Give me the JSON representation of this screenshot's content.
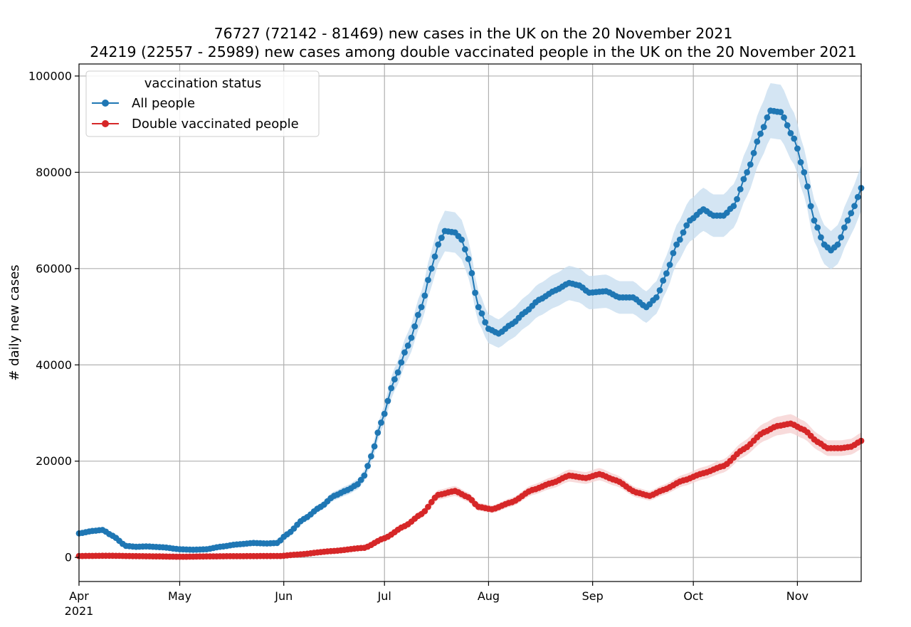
{
  "chart_data": {
    "type": "line",
    "title": "76727 (72142 - 81469) new cases in the UK on the 20 November 2021",
    "subtitle": "24219 (22557 - 25989) new cases among double vaccinated people in the UK on the 20 November 2021",
    "xlabel": "",
    "ylabel": "# daily new cases",
    "x_range": [
      "2021-04-01",
      "2021-11-20"
    ],
    "ylim": [
      -5000,
      102500
    ],
    "grid": true,
    "x_ticks": [
      {
        "date": "2021-04-01",
        "label": "Apr",
        "sublabel": "2021"
      },
      {
        "date": "2021-05-01",
        "label": "May"
      },
      {
        "date": "2021-06-01",
        "label": "Jun"
      },
      {
        "date": "2021-07-01",
        "label": "Jul"
      },
      {
        "date": "2021-08-01",
        "label": "Aug"
      },
      {
        "date": "2021-09-01",
        "label": "Sep"
      },
      {
        "date": "2021-10-01",
        "label": "Oct"
      },
      {
        "date": "2021-11-01",
        "label": "Nov"
      }
    ],
    "y_ticks": [
      0,
      20000,
      40000,
      60000,
      80000,
      100000
    ],
    "legend": {
      "title": "vaccination status",
      "placement": "top-left"
    },
    "series": [
      {
        "name": "All people",
        "color": "#1f77b4",
        "band_color": "#c6dcef",
        "band_rel": 0.06,
        "keypoints": [
          [
            "2021-04-01",
            5000
          ],
          [
            "2021-04-05",
            5500
          ],
          [
            "2021-04-08",
            5700
          ],
          [
            "2021-04-11",
            4500
          ],
          [
            "2021-04-15",
            2400
          ],
          [
            "2021-04-18",
            2200
          ],
          [
            "2021-04-21",
            2300
          ],
          [
            "2021-04-26",
            2100
          ],
          [
            "2021-05-01",
            1700
          ],
          [
            "2021-05-05",
            1600
          ],
          [
            "2021-05-09",
            1700
          ],
          [
            "2021-05-13",
            2200
          ],
          [
            "2021-05-18",
            2700
          ],
          [
            "2021-05-23",
            3000
          ],
          [
            "2021-05-27",
            2900
          ],
          [
            "2021-05-30",
            3000
          ],
          [
            "2021-06-02",
            4800
          ],
          [
            "2021-06-07",
            8000
          ],
          [
            "2021-06-12",
            10500
          ],
          [
            "2021-06-16",
            12800
          ],
          [
            "2021-06-20",
            14000
          ],
          [
            "2021-06-23",
            15200
          ],
          [
            "2021-06-25",
            17000
          ],
          [
            "2021-06-27",
            21000
          ],
          [
            "2021-06-30",
            28000
          ],
          [
            "2021-07-04",
            37000
          ],
          [
            "2021-07-08",
            44000
          ],
          [
            "2021-07-12",
            52000
          ],
          [
            "2021-07-15",
            60000
          ],
          [
            "2021-07-17",
            65000
          ],
          [
            "2021-07-19",
            67800
          ],
          [
            "2021-07-22",
            67500
          ],
          [
            "2021-07-24",
            66000
          ],
          [
            "2021-07-26",
            62000
          ],
          [
            "2021-07-29",
            52000
          ],
          [
            "2021-08-01",
            47500
          ],
          [
            "2021-08-04",
            46500
          ],
          [
            "2021-08-08",
            48500
          ],
          [
            "2021-08-12",
            51000
          ],
          [
            "2021-08-16",
            53500
          ],
          [
            "2021-08-21",
            55500
          ],
          [
            "2021-08-25",
            57000
          ],
          [
            "2021-08-28",
            56500
          ],
          [
            "2021-08-31",
            55000
          ],
          [
            "2021-09-05",
            55300
          ],
          [
            "2021-09-09",
            54000
          ],
          [
            "2021-09-13",
            54000
          ],
          [
            "2021-09-17",
            52000
          ],
          [
            "2021-09-20",
            54000
          ],
          [
            "2021-09-23",
            59000
          ],
          [
            "2021-09-26",
            65000
          ],
          [
            "2021-09-30",
            70000
          ],
          [
            "2021-10-04",
            72300
          ],
          [
            "2021-10-07",
            71000
          ],
          [
            "2021-10-10",
            71000
          ],
          [
            "2021-10-13",
            73000
          ],
          [
            "2021-10-17",
            80000
          ],
          [
            "2021-10-21",
            88000
          ],
          [
            "2021-10-24",
            92800
          ],
          [
            "2021-10-27",
            92500
          ],
          [
            "2021-10-31",
            87000
          ],
          [
            "2021-11-03",
            80000
          ],
          [
            "2021-11-06",
            70000
          ],
          [
            "2021-11-09",
            65000
          ],
          [
            "2021-11-11",
            63800
          ],
          [
            "2021-11-13",
            65000
          ],
          [
            "2021-11-16",
            70000
          ],
          [
            "2021-11-18",
            73000
          ],
          [
            "2021-11-20",
            76727
          ]
        ]
      },
      {
        "name": "Double vaccinated people",
        "color": "#d62728",
        "band_color": "#f6cfcf",
        "band_rel": 0.065,
        "keypoints": [
          [
            "2021-04-01",
            300
          ],
          [
            "2021-04-10",
            350
          ],
          [
            "2021-04-20",
            250
          ],
          [
            "2021-05-01",
            150
          ],
          [
            "2021-05-15",
            250
          ],
          [
            "2021-05-31",
            300
          ],
          [
            "2021-06-05",
            600
          ],
          [
            "2021-06-15",
            1300
          ],
          [
            "2021-06-25",
            2000
          ],
          [
            "2021-07-01",
            4000
          ],
          [
            "2021-07-07",
            6500
          ],
          [
            "2021-07-12",
            9000
          ],
          [
            "2021-07-17",
            13000
          ],
          [
            "2021-07-22",
            13800
          ],
          [
            "2021-07-26",
            12500
          ],
          [
            "2021-07-29",
            10500
          ],
          [
            "2021-08-02",
            10000
          ],
          [
            "2021-08-08",
            11500
          ],
          [
            "2021-08-14",
            14000
          ],
          [
            "2021-08-20",
            15500
          ],
          [
            "2021-08-25",
            17000
          ],
          [
            "2021-08-30",
            16500
          ],
          [
            "2021-09-03",
            17300
          ],
          [
            "2021-09-08",
            16000
          ],
          [
            "2021-09-14",
            13500
          ],
          [
            "2021-09-18",
            12800
          ],
          [
            "2021-09-22",
            14000
          ],
          [
            "2021-09-28",
            16000
          ],
          [
            "2021-10-04",
            17500
          ],
          [
            "2021-10-10",
            19000
          ],
          [
            "2021-10-16",
            22500
          ],
          [
            "2021-10-22",
            26000
          ],
          [
            "2021-10-26",
            27300
          ],
          [
            "2021-10-30",
            27800
          ],
          [
            "2021-11-03",
            26500
          ],
          [
            "2021-11-07",
            24000
          ],
          [
            "2021-11-10",
            22700
          ],
          [
            "2021-11-14",
            22700
          ],
          [
            "2021-11-17",
            23000
          ],
          [
            "2021-11-20",
            24219
          ]
        ]
      }
    ]
  }
}
